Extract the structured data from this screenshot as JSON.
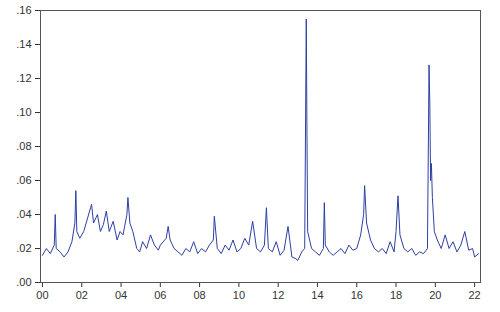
{
  "chart_data": {
    "type": "line",
    "color": "#2e3fa3",
    "grid": false,
    "x": [
      2000.0,
      2000.2,
      2000.4,
      2000.6,
      2000.65,
      2000.7,
      2000.9,
      2001.1,
      2001.3,
      2001.5,
      2001.65,
      2001.7,
      2001.75,
      2001.9,
      2002.1,
      2002.3,
      2002.45,
      2002.5,
      2002.6,
      2002.8,
      2002.95,
      2003.1,
      2003.25,
      2003.4,
      2003.6,
      2003.8,
      2003.95,
      2004.1,
      2004.3,
      2004.35,
      2004.45,
      2004.6,
      2004.8,
      2004.95,
      2005.1,
      2005.3,
      2005.5,
      2005.7,
      2005.9,
      2006.0,
      2006.3,
      2006.4,
      2006.5,
      2006.7,
      2006.9,
      2007.1,
      2007.3,
      2007.5,
      2007.7,
      2007.9,
      2008.1,
      2008.3,
      2008.5,
      2008.7,
      2008.75,
      2008.9,
      2009.1,
      2009.3,
      2009.5,
      2009.7,
      2009.9,
      2010.1,
      2010.3,
      2010.5,
      2010.7,
      2010.9,
      2011.1,
      2011.3,
      2011.4,
      2011.5,
      2011.7,
      2011.9,
      2012.1,
      2012.3,
      2012.5,
      2012.7,
      2012.9,
      2013.0,
      2013.2,
      2013.35,
      2013.43,
      2013.46,
      2013.5,
      2013.7,
      2013.9,
      2014.1,
      2014.3,
      2014.35,
      2014.4,
      2014.6,
      2014.8,
      2015.0,
      2015.2,
      2015.4,
      2015.6,
      2015.8,
      2016.0,
      2016.2,
      2016.35,
      2016.4,
      2016.5,
      2016.7,
      2016.9,
      2017.1,
      2017.3,
      2017.5,
      2017.7,
      2017.9,
      2018.0,
      2018.1,
      2018.2,
      2018.4,
      2018.6,
      2018.8,
      2019.0,
      2019.2,
      2019.4,
      2019.6,
      2019.68,
      2019.72,
      2019.76,
      2019.8,
      2019.85,
      2019.95,
      2020.1,
      2020.3,
      2020.5,
      2020.7,
      2020.9,
      2021.1,
      2021.3,
      2021.5,
      2021.7,
      2021.9,
      2022.0,
      2022.2
    ],
    "values": [
      0.016,
      0.02,
      0.017,
      0.022,
      0.04,
      0.02,
      0.018,
      0.015,
      0.018,
      0.024,
      0.035,
      0.054,
      0.03,
      0.026,
      0.03,
      0.038,
      0.044,
      0.046,
      0.035,
      0.04,
      0.03,
      0.034,
      0.042,
      0.03,
      0.036,
      0.025,
      0.03,
      0.028,
      0.04,
      0.05,
      0.035,
      0.03,
      0.02,
      0.018,
      0.024,
      0.02,
      0.028,
      0.022,
      0.019,
      0.022,
      0.026,
      0.033,
      0.025,
      0.02,
      0.018,
      0.016,
      0.02,
      0.018,
      0.024,
      0.017,
      0.02,
      0.018,
      0.022,
      0.025,
      0.039,
      0.02,
      0.017,
      0.022,
      0.019,
      0.025,
      0.018,
      0.02,
      0.026,
      0.022,
      0.036,
      0.02,
      0.018,
      0.022,
      0.044,
      0.02,
      0.018,
      0.024,
      0.016,
      0.019,
      0.033,
      0.015,
      0.014,
      0.013,
      0.018,
      0.02,
      0.155,
      0.098,
      0.03,
      0.02,
      0.018,
      0.016,
      0.02,
      0.047,
      0.022,
      0.018,
      0.016,
      0.018,
      0.02,
      0.017,
      0.022,
      0.019,
      0.02,
      0.028,
      0.04,
      0.057,
      0.035,
      0.025,
      0.02,
      0.018,
      0.02,
      0.017,
      0.024,
      0.018,
      0.03,
      0.051,
      0.028,
      0.02,
      0.018,
      0.02,
      0.016,
      0.018,
      0.017,
      0.02,
      0.128,
      0.105,
      0.06,
      0.07,
      0.05,
      0.03,
      0.025,
      0.02,
      0.028,
      0.02,
      0.024,
      0.018,
      0.022,
      0.03,
      0.019,
      0.02,
      0.015,
      0.017
    ],
    "xlim": [
      1999.9,
      2022.3
    ],
    "xticks": [
      {
        "value": 2000,
        "label": "00"
      },
      {
        "value": 2002,
        "label": "02"
      },
      {
        "value": 2004,
        "label": "04"
      },
      {
        "value": 2006,
        "label": "06"
      },
      {
        "value": 2008,
        "label": "08"
      },
      {
        "value": 2010,
        "label": "10"
      },
      {
        "value": 2012,
        "label": "12"
      },
      {
        "value": 2014,
        "label": "14"
      },
      {
        "value": 2016,
        "label": "16"
      },
      {
        "value": 2018,
        "label": "18"
      },
      {
        "value": 2020,
        "label": "20"
      },
      {
        "value": 2022,
        "label": "22"
      }
    ],
    "ylim": [
      0,
      0.16
    ],
    "yticks": [
      {
        "value": 0,
        "label": ".00"
      },
      {
        "value": 0.02,
        "label": ".02"
      },
      {
        "value": 0.04,
        "label": ".04"
      },
      {
        "value": 0.06,
        "label": ".06"
      },
      {
        "value": 0.08,
        "label": ".08"
      },
      {
        "value": 0.1,
        "label": ".10"
      },
      {
        "value": 0.12,
        "label": ".12"
      },
      {
        "value": 0.14,
        "label": ".14"
      },
      {
        "value": 0.16,
        "label": ".16"
      }
    ]
  }
}
